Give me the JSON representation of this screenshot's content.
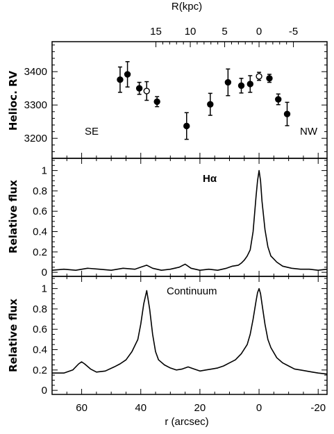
{
  "chart_data": [
    {
      "type": "scatter",
      "panel": "top",
      "top_axis": {
        "label": "R(kpc)",
        "ticks": [
          15,
          10,
          5,
          0,
          -5
        ],
        "tick_labels": [
          "15",
          "10",
          "5",
          "0",
          "-5"
        ],
        "range": [
          15,
          -5
        ]
      },
      "ylabel": "Helioc. RV",
      "ylim": [
        3140,
        3490
      ],
      "yticks": [
        3200,
        3300,
        3400
      ],
      "ytick_labels": [
        "3200",
        "3300",
        "3400"
      ],
      "annotations": [
        "SE",
        "NW"
      ],
      "series": [
        {
          "marker": "filled-circle",
          "points": [
            {
              "r": 47.0,
              "rv": 3376,
              "err": 38
            },
            {
              "r": 44.5,
              "rv": 3392,
              "err": 38
            },
            {
              "r": 40.5,
              "rv": 3350,
              "err": 18
            },
            {
              "r": 34.5,
              "rv": 3310,
              "err": 15
            },
            {
              "r": 24.5,
              "rv": 3237,
              "err": 40
            },
            {
              "r": 16.5,
              "rv": 3302,
              "err": 33
            },
            {
              "r": 10.5,
              "rv": 3368,
              "err": 40
            },
            {
              "r": 6.0,
              "rv": 3358,
              "err": 22
            },
            {
              "r": 3.0,
              "rv": 3363,
              "err": 25
            },
            {
              "r": -3.5,
              "rv": 3380,
              "err": 12
            },
            {
              "r": -6.5,
              "rv": 3317,
              "err": 16
            },
            {
              "r": -9.5,
              "rv": 3273,
              "err": 35
            }
          ]
        },
        {
          "marker": "open-circle",
          "points": [
            {
              "r": 38.0,
              "rv": 3342,
              "err": 28
            },
            {
              "r": 0.0,
              "rv": 3386,
              "err": 12
            }
          ]
        }
      ]
    },
    {
      "type": "line",
      "panel": "middle",
      "ylabel": "Relative flux",
      "annotation": "Hα",
      "ylim": [
        -0.04,
        1.12
      ],
      "yticks": [
        0,
        0.2,
        0.4,
        0.6,
        0.8,
        1
      ],
      "ytick_labels": [
        "0",
        "0.2",
        "0.4",
        "0.6",
        "0.8",
        "1"
      ],
      "series": [
        {
          "x": [
            70,
            66,
            62,
            58,
            54,
            50,
            46,
            42,
            40,
            38,
            36,
            33,
            30,
            27,
            25,
            23,
            20,
            17,
            14,
            11,
            9,
            7,
            6,
            5,
            4,
            3,
            2,
            1,
            0.5,
            0,
            -0.5,
            -1,
            -2,
            -3,
            -4,
            -5,
            -6,
            -8,
            -11,
            -14,
            -17,
            -20,
            -23
          ],
          "y": [
            0.02,
            0.03,
            0.02,
            0.04,
            0.03,
            0.02,
            0.04,
            0.03,
            0.05,
            0.07,
            0.04,
            0.02,
            0.03,
            0.05,
            0.08,
            0.04,
            0.02,
            0.03,
            0.02,
            0.04,
            0.06,
            0.07,
            0.09,
            0.12,
            0.16,
            0.22,
            0.4,
            0.75,
            0.9,
            1.0,
            0.9,
            0.7,
            0.42,
            0.25,
            0.16,
            0.13,
            0.1,
            0.06,
            0.04,
            0.03,
            0.03,
            0.02,
            0.03
          ]
        }
      ]
    },
    {
      "type": "line",
      "panel": "bottom",
      "ylabel": "Relative flux",
      "annotation": "Continuum",
      "xlabel": "r (arcsec)",
      "xlim": [
        70,
        -23
      ],
      "xticks": [
        60,
        40,
        20,
        0,
        -20
      ],
      "xtick_labels": [
        "60",
        "40",
        "20",
        "0",
        "-20"
      ],
      "ylim": [
        -0.04,
        1.12
      ],
      "yticks": [
        0,
        0.2,
        0.4,
        0.6,
        0.8,
        1
      ],
      "ytick_labels": [
        "0",
        "0.2",
        "0.4",
        "0.6",
        "0.8",
        "1"
      ],
      "series": [
        {
          "x": [
            70,
            66,
            63,
            61,
            60,
            59,
            57,
            55,
            52,
            49,
            47,
            45,
            43,
            41,
            40,
            39,
            38,
            37,
            36,
            35,
            34,
            32,
            30,
            28,
            26,
            24,
            22,
            20,
            18,
            16,
            14,
            12,
            10,
            8,
            6,
            4,
            3,
            2,
            1,
            0.5,
            0,
            -0.5,
            -1,
            -2,
            -3,
            -4,
            -6,
            -8,
            -10,
            -12,
            -14,
            -16,
            -18,
            -20,
            -23
          ],
          "y": [
            0.17,
            0.17,
            0.2,
            0.26,
            0.28,
            0.26,
            0.21,
            0.18,
            0.19,
            0.23,
            0.26,
            0.3,
            0.38,
            0.5,
            0.65,
            0.85,
            0.98,
            0.8,
            0.55,
            0.38,
            0.3,
            0.25,
            0.22,
            0.2,
            0.21,
            0.23,
            0.21,
            0.19,
            0.2,
            0.21,
            0.22,
            0.24,
            0.27,
            0.3,
            0.36,
            0.45,
            0.55,
            0.7,
            0.88,
            0.96,
            1.0,
            0.95,
            0.85,
            0.65,
            0.5,
            0.42,
            0.32,
            0.27,
            0.24,
            0.21,
            0.2,
            0.19,
            0.18,
            0.17,
            0.16
          ]
        }
      ]
    }
  ]
}
